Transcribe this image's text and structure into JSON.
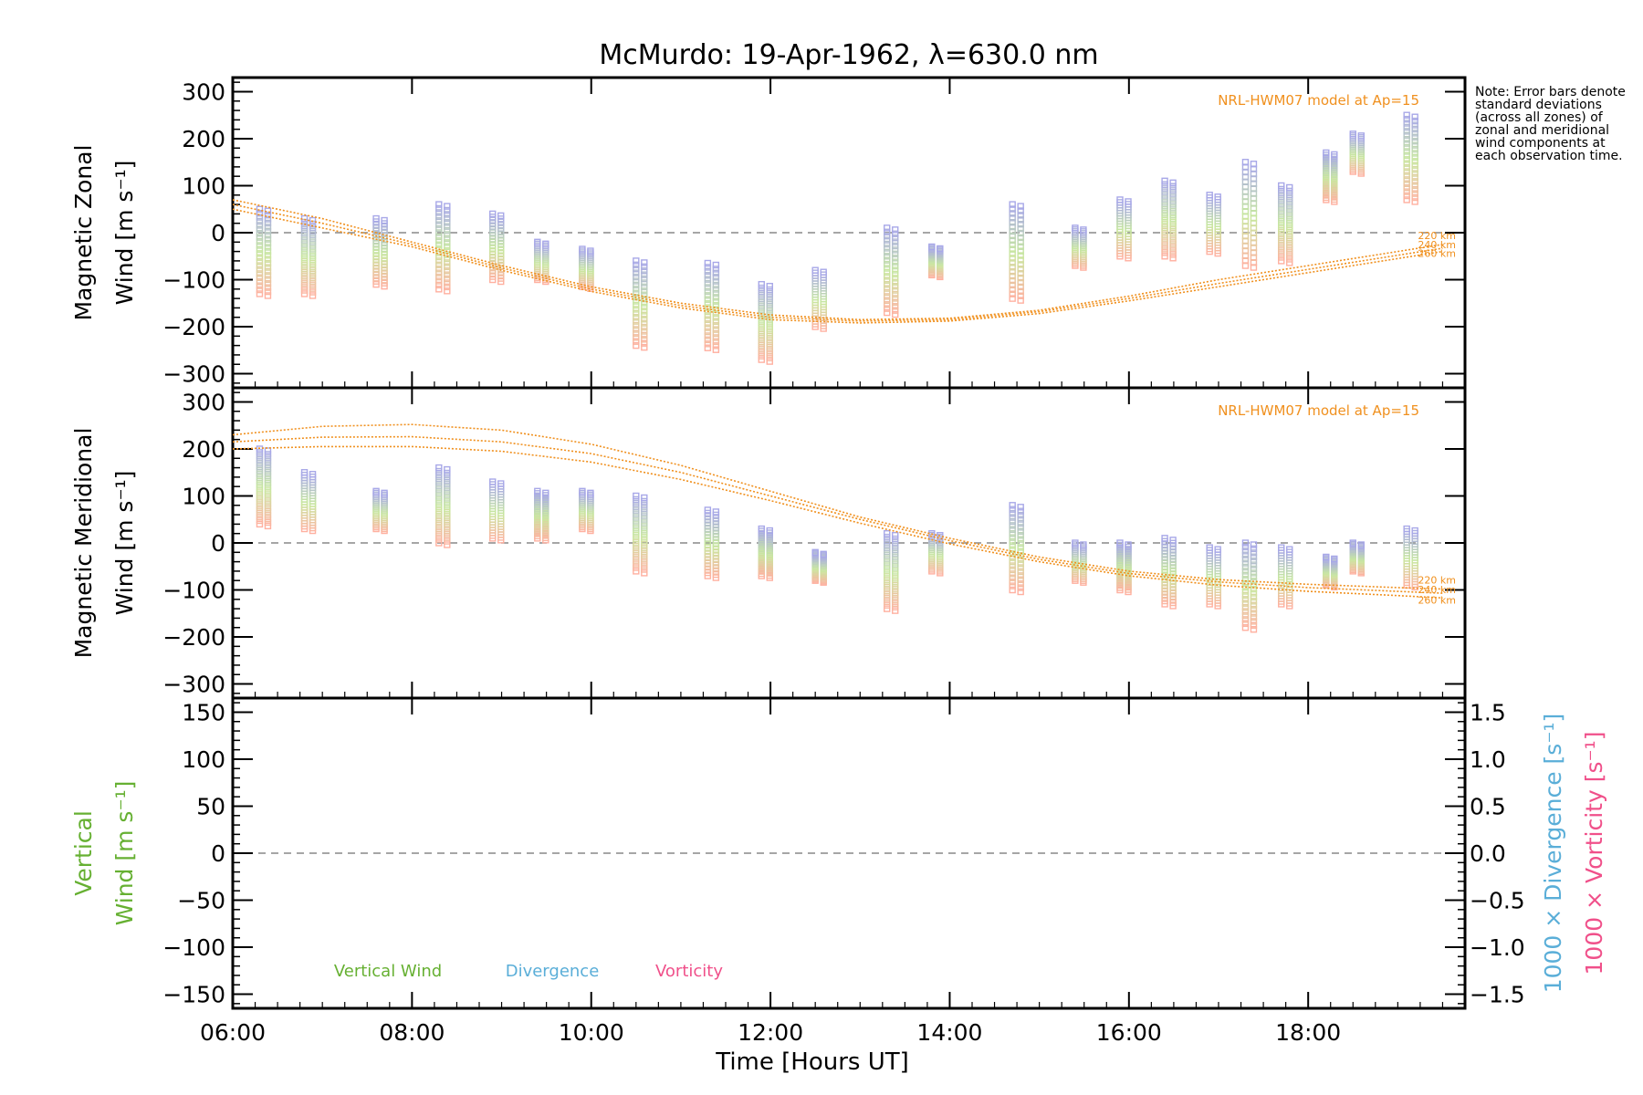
{
  "note": "Note: Error bars denote standard deviations (across all zones) of zonal and meridional wind components at each observation time.",
  "chart_data": [
    {
      "type": "scatter",
      "panel": "zonal",
      "title": "McMurdo: 19-Apr-1962, λ=630.0 nm",
      "ylabel_line1": "Magnetic Zonal",
      "ylabel_line2": "Wind [m s⁻¹]",
      "ylim": [
        -330,
        330
      ],
      "yticks": [
        "300",
        "200",
        "100",
        "0",
        "−100",
        "−200",
        "−300"
      ],
      "ytick_values": [
        300,
        200,
        100,
        0,
        -100,
        -200,
        -300
      ],
      "model_label": "NRL-HWM07 model at Ap=15",
      "model_color": "#f0901e",
      "model_height_labels": [
        "220 km",
        "240 km",
        "260 km"
      ],
      "model": {
        "x": [
          6.0,
          7.0,
          8.0,
          9.0,
          10.0,
          11.0,
          12.0,
          13.0,
          14.0,
          15.0,
          16.0,
          17.0,
          18.0,
          19.0,
          19.5
        ],
        "series": [
          {
            "values": [
              70,
              30,
              -20,
              -70,
              -115,
              -150,
              -175,
              -185,
              -182,
              -165,
              -135,
              -100,
              -70,
              -40,
              -25
            ]
          },
          {
            "values": [
              60,
              20,
              -25,
              -75,
              -120,
              -155,
              -180,
              -188,
              -185,
              -168,
              -140,
              -108,
              -78,
              -48,
              -33
            ]
          },
          {
            "values": [
              50,
              10,
              -30,
              -80,
              -125,
              -160,
              -185,
              -192,
              -188,
              -172,
              -145,
              -115,
              -85,
              -55,
              -40
            ]
          }
        ]
      },
      "observations": {
        "x": [
          6.3,
          6.8,
          7.6,
          8.3,
          8.9,
          9.4,
          9.9,
          10.5,
          11.3,
          11.9,
          12.5,
          13.3,
          13.8,
          14.7,
          15.4,
          15.9,
          16.4,
          16.9,
          17.3,
          17.7,
          18.2,
          18.5,
          19.1
        ],
        "y": [
          -40,
          -50,
          -40,
          -30,
          -30,
          -60,
          -75,
          -150,
          -155,
          -190,
          -140,
          -80,
          -60,
          -40,
          -30,
          10,
          30,
          20,
          40,
          20,
          120,
          170,
          160
        ],
        "spread": [
          90,
          80,
          70,
          90,
          70,
          40,
          40,
          90,
          90,
          80,
          60,
          90,
          30,
          100,
          40,
          60,
          80,
          60,
          110,
          80,
          50,
          40,
          90
        ]
      }
    },
    {
      "type": "scatter",
      "panel": "meridional",
      "ylabel_line1": "Magnetic Meridional",
      "ylabel_line2": "Wind [m s⁻¹]",
      "ylim": [
        -330,
        330
      ],
      "yticks": [
        "300",
        "200",
        "100",
        "0",
        "−100",
        "−200",
        "−300"
      ],
      "ytick_values": [
        300,
        200,
        100,
        0,
        -100,
        -200,
        -300
      ],
      "model_label": "NRL-HWM07 model at Ap=15",
      "model_color": "#f0901e",
      "model_height_labels": [
        "220 km",
        "240 km",
        "260 km"
      ],
      "model": {
        "x": [
          6.0,
          7.0,
          8.0,
          9.0,
          10.0,
          11.0,
          12.0,
          13.0,
          14.0,
          15.0,
          16.0,
          17.0,
          18.0,
          19.0,
          19.5
        ],
        "series": [
          {
            "values": [
              230,
              248,
              252,
              240,
              210,
              165,
              110,
              55,
              10,
              -30,
              -60,
              -78,
              -88,
              -95,
              -98
            ]
          },
          {
            "values": [
              215,
              225,
              226,
              215,
              190,
              150,
              100,
              50,
              5,
              -35,
              -65,
              -83,
              -95,
              -103,
              -107
            ]
          },
          {
            "values": [
              200,
              205,
              205,
              195,
              172,
              135,
              90,
              42,
              -2,
              -40,
              -70,
              -90,
              -103,
              -112,
              -117
            ]
          }
        ]
      },
      "observations": {
        "x": [
          6.3,
          6.8,
          7.6,
          8.3,
          8.9,
          9.4,
          9.9,
          10.5,
          11.3,
          11.9,
          12.5,
          13.3,
          13.8,
          14.7,
          15.4,
          15.9,
          16.4,
          16.9,
          17.3,
          17.7,
          18.2,
          18.5,
          19.1
        ],
        "y": [
          120,
          90,
          70,
          80,
          70,
          60,
          70,
          20,
          0,
          -20,
          -50,
          -60,
          -20,
          -10,
          -40,
          -50,
          -60,
          -70,
          -90,
          -70,
          -60,
          -30,
          -30
        ],
        "spread": [
          80,
          60,
          40,
          80,
          60,
          50,
          40,
          80,
          70,
          50,
          30,
          80,
          40,
          90,
          40,
          50,
          70,
          60,
          90,
          60,
          30,
          30,
          60
        ]
      }
    },
    {
      "type": "line",
      "panel": "vertical",
      "ylabel_line1": "Vertical",
      "ylabel_line2": "Wind [m s⁻¹]",
      "ylim": [
        -165,
        165
      ],
      "yticks": [
        "150",
        "100",
        "50",
        "0",
        "−50",
        "−100",
        "−150"
      ],
      "ytick_values": [
        150,
        100,
        50,
        0,
        -50,
        -100,
        -150
      ],
      "y2_ticks": [
        "1.5",
        "1.0",
        "0.5",
        "0.0",
        "−0.5",
        "−1.0",
        "−1.5"
      ],
      "y2_tick_values": [
        1.5,
        1.0,
        0.5,
        0.0,
        -0.5,
        -1.0,
        -1.5
      ],
      "y2_label_1": "1000 × Divergence [s⁻¹]",
      "y2_label_2": "1000 × Vorticity [s⁻¹]",
      "legend": [
        "Vertical Wind",
        "Divergence",
        "Vorticity"
      ],
      "legend_colors": [
        "#66b032",
        "#5aaed8",
        "#f0508a"
      ],
      "series": []
    }
  ],
  "xaxis": {
    "label": "Time [Hours UT]",
    "range": [
      6.0,
      19.75
    ],
    "tick_labels": [
      "06:00",
      "08:00",
      "10:00",
      "12:00",
      "14:00",
      "16:00",
      "18:00"
    ],
    "tick_values": [
      6,
      8,
      10,
      12,
      14,
      16,
      18
    ]
  },
  "colors": {
    "zero_line": "#888888",
    "obs_low_height": "#ffb0a0",
    "obs_mid_height": "#c8e8a0",
    "obs_high_height": "#a8a8e8"
  }
}
